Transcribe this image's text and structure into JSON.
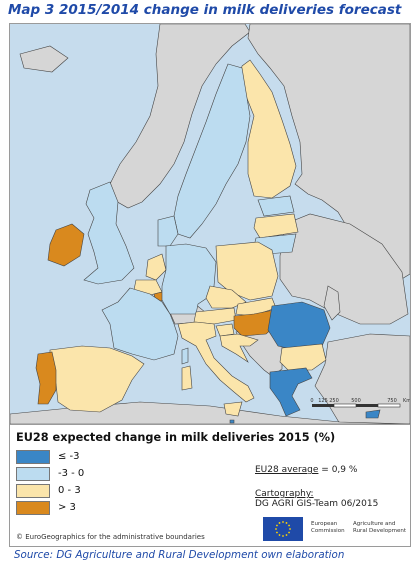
{
  "title": "Map 3  2015/2014 change in milk deliveries forecast",
  "colors": {
    "sea": "#c6dced",
    "non_eu": "#d6d6d6",
    "border": "#444444",
    "class_le_m3": "#3a86c6",
    "class_m3_0": "#bcdcf0",
    "class_0_3": "#fbe5ab",
    "class_gt_3": "#d9891e"
  },
  "scale_bar": {
    "labels": [
      "0",
      "125",
      "250",
      "500",
      "750"
    ],
    "unit": "Km"
  },
  "legend": {
    "title": "EU28 expected change in milk deliveries 2015 (%)",
    "items": [
      {
        "label": "≤ -3",
        "class": "class_le_m3"
      },
      {
        "label": "-3 - 0",
        "class": "class_m3_0"
      },
      {
        "label": "0 - 3",
        "class": "class_0_3"
      },
      {
        "label": "> 3",
        "class": "class_gt_3"
      }
    ],
    "eu_average_label": "EU28 average",
    "eu_average_value": " = 0,9 %",
    "cartography_label": "Cartography:",
    "cartography_value": "DG AGRI GIS-Team 06/2015",
    "copyright": "© EuroGeographics for the administrative boundaries",
    "logo_text_1": "European",
    "logo_text_2": "Commission",
    "logo_text_3": "Agriculture and",
    "logo_text_4": "Rural Development"
  },
  "source": "Source: DG Agriculture and Rural Development own elaboration",
  "countries": [
    {
      "name": "Finland",
      "class": "class_0_3"
    },
    {
      "name": "Sweden",
      "class": "class_m3_0"
    },
    {
      "name": "Estonia",
      "class": "class_m3_0"
    },
    {
      "name": "Latvia",
      "class": "class_0_3"
    },
    {
      "name": "Lithuania",
      "class": "class_m3_0"
    },
    {
      "name": "Denmark",
      "class": "class_m3_0"
    },
    {
      "name": "Ireland",
      "class": "class_gt_3"
    },
    {
      "name": "United Kingdom",
      "class": "class_m3_0"
    },
    {
      "name": "Netherlands",
      "class": "class_0_3"
    },
    {
      "name": "Belgium",
      "class": "class_0_3"
    },
    {
      "name": "Luxembourg",
      "class": "class_gt_3"
    },
    {
      "name": "Germany",
      "class": "class_m3_0"
    },
    {
      "name": "Poland",
      "class": "class_0_3"
    },
    {
      "name": "Czech Republic",
      "class": "class_0_3"
    },
    {
      "name": "Slovakia",
      "class": "class_0_3"
    },
    {
      "name": "Austria",
      "class": "class_0_3"
    },
    {
      "name": "Hungary",
      "class": "class_gt_3"
    },
    {
      "name": "Slovenia",
      "class": "class_0_3"
    },
    {
      "name": "Croatia",
      "class": "class_0_3"
    },
    {
      "name": "Romania",
      "class": "class_le_m3"
    },
    {
      "name": "Bulgaria",
      "class": "class_0_3"
    },
    {
      "name": "Greece",
      "class": "class_le_m3"
    },
    {
      "name": "Italy",
      "class": "class_0_3"
    },
    {
      "name": "France",
      "class": "class_m3_0"
    },
    {
      "name": "Spain",
      "class": "class_0_3"
    },
    {
      "name": "Portugal",
      "class": "class_gt_3"
    },
    {
      "name": "Cyprus",
      "class": "class_le_m3"
    },
    {
      "name": "Malta",
      "class": "class_le_m3"
    }
  ]
}
